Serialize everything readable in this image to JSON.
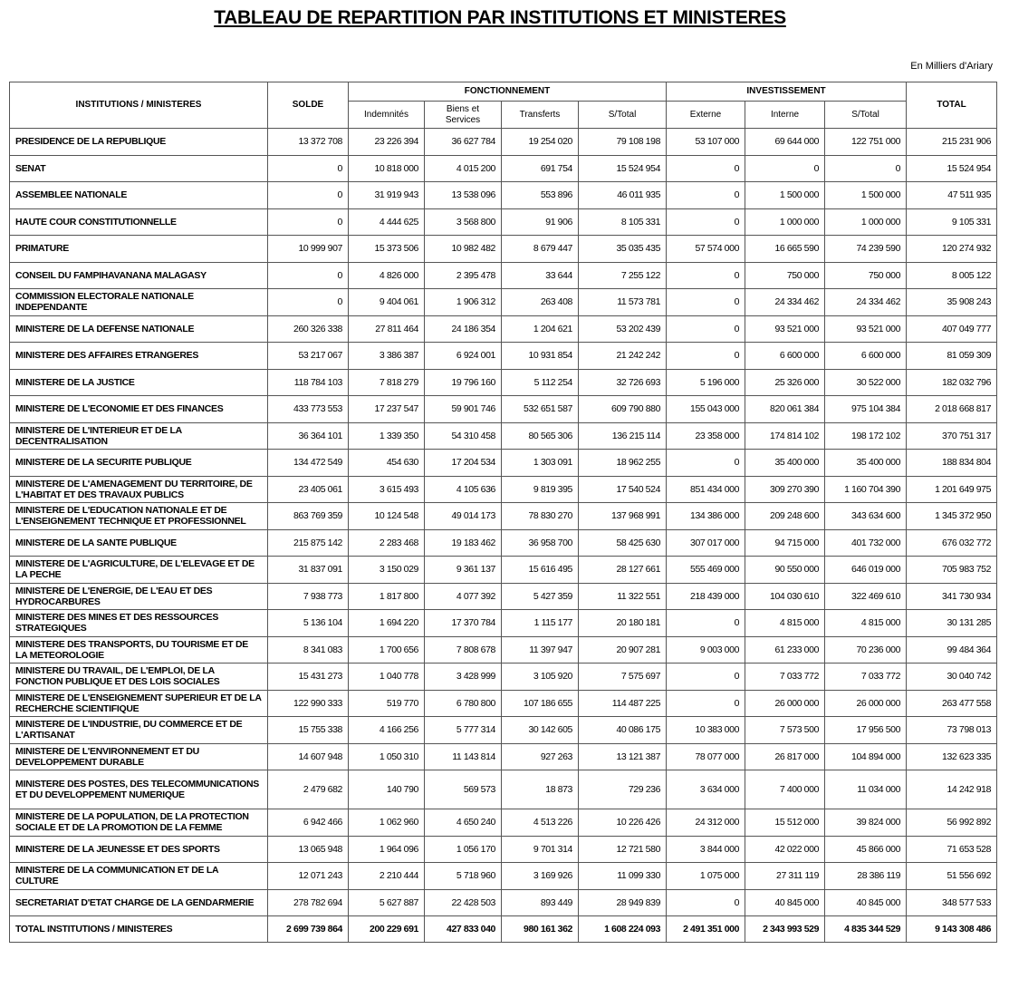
{
  "title": "TABLEAU DE REPARTITION PAR INSTITUTIONS ET MINISTERES",
  "unit": "En Milliers d'Ariary",
  "headers": {
    "institutions": "INSTITUTIONS / MINISTERES",
    "solde": "SOLDE",
    "fonctionnement": "FONCTIONNEMENT",
    "investissement": "INVESTISSEMENT",
    "total": "TOTAL",
    "indemnites": "Indemnités",
    "biens": "Biens et Services",
    "transferts": "Transferts",
    "stotal_f": "S/Total",
    "externe": "Externe",
    "interne": "Interne",
    "stotal_i": "S/Total"
  },
  "rows": [
    [
      "PRESIDENCE DE LA REPUBLIQUE",
      "13 372 708",
      "23 226 394",
      "36 627 784",
      "19 254 020",
      "79 108 198",
      "53 107 000",
      "69 644 000",
      "122 751 000",
      "215 231 906"
    ],
    [
      "SENAT",
      "0",
      "10 818 000",
      "4 015 200",
      "691 754",
      "15 524 954",
      "0",
      "0",
      "0",
      "15 524 954"
    ],
    [
      "ASSEMBLEE NATIONALE",
      "0",
      "31 919 943",
      "13 538 096",
      "553 896",
      "46 011 935",
      "0",
      "1 500 000",
      "1 500 000",
      "47 511 935"
    ],
    [
      "HAUTE COUR CONSTITUTIONNELLE",
      "0",
      "4 444 625",
      "3 568 800",
      "91 906",
      "8 105 331",
      "0",
      "1 000 000",
      "1 000 000",
      "9 105 331"
    ],
    [
      "PRIMATURE",
      "10 999 907",
      "15 373 506",
      "10 982 482",
      "8 679 447",
      "35 035 435",
      "57 574 000",
      "16 665 590",
      "74 239 590",
      "120 274 932"
    ],
    [
      "CONSEIL DU FAMPIHAVANANA MALAGASY",
      "0",
      "4 826 000",
      "2 395 478",
      "33 644",
      "7 255 122",
      "0",
      "750 000",
      "750 000",
      "8 005 122"
    ],
    [
      "COMMISSION ELECTORALE NATIONALE INDEPENDANTE",
      "0",
      "9 404 061",
      "1 906 312",
      "263 408",
      "11 573 781",
      "0",
      "24 334 462",
      "24 334 462",
      "35 908 243"
    ],
    [
      "MINISTERE DE LA DEFENSE NATIONALE",
      "260 326 338",
      "27 811 464",
      "24 186 354",
      "1 204 621",
      "53 202 439",
      "0",
      "93 521 000",
      "93 521 000",
      "407 049 777"
    ],
    [
      "MINISTERE DES AFFAIRES ETRANGERES",
      "53 217 067",
      "3 386 387",
      "6 924 001",
      "10 931 854",
      "21 242 242",
      "0",
      "6 600 000",
      "6 600 000",
      "81 059 309"
    ],
    [
      "MINISTERE DE LA JUSTICE",
      "118 784 103",
      "7 818 279",
      "19 796 160",
      "5 112 254",
      "32 726 693",
      "5 196 000",
      "25 326 000",
      "30 522 000",
      "182 032 796"
    ],
    [
      "MINISTERE DE L'ECONOMIE ET DES FINANCES",
      "433 773 553",
      "17 237 547",
      "59 901 746",
      "532 651 587",
      "609 790 880",
      "155 043 000",
      "820 061 384",
      "975 104 384",
      "2 018 668 817"
    ],
    [
      "MINISTERE DE L'INTERIEUR ET DE LA DECENTRALISATION",
      "36 364 101",
      "1 339 350",
      "54 310 458",
      "80 565 306",
      "136 215 114",
      "23 358 000",
      "174 814 102",
      "198 172 102",
      "370 751 317"
    ],
    [
      "MINISTERE DE LA SECURITE PUBLIQUE",
      "134 472 549",
      "454 630",
      "17 204 534",
      "1 303 091",
      "18 962 255",
      "0",
      "35 400 000",
      "35 400 000",
      "188 834 804"
    ],
    [
      "MINISTERE DE L'AMENAGEMENT DU TERRITOIRE, DE L'HABITAT ET DES TRAVAUX PUBLICS",
      "23 405 061",
      "3 615 493",
      "4 105 636",
      "9 819 395",
      "17 540 524",
      "851 434 000",
      "309 270 390",
      "1 160 704 390",
      "1 201 649 975"
    ],
    [
      "MINISTERE DE L'EDUCATION NATIONALE ET DE L'ENSEIGNEMENT TECHNIQUE ET PROFESSIONNEL",
      "863 769 359",
      "10 124 548",
      "49 014 173",
      "78 830 270",
      "137 968 991",
      "134 386 000",
      "209 248 600",
      "343 634 600",
      "1 345 372 950"
    ],
    [
      "MINISTERE DE LA SANTE PUBLIQUE",
      "215 875 142",
      "2 283 468",
      "19 183 462",
      "36 958 700",
      "58 425 630",
      "307 017 000",
      "94 715 000",
      "401 732 000",
      "676 032 772"
    ],
    [
      "MINISTERE DE L'AGRICULTURE, DE L'ELEVAGE ET DE LA PECHE",
      "31 837 091",
      "3 150 029",
      "9 361 137",
      "15 616 495",
      "28 127 661",
      "555 469 000",
      "90 550 000",
      "646 019 000",
      "705 983 752"
    ],
    [
      "MINISTERE DE L'ENERGIE, DE L'EAU ET DES HYDROCARBURES",
      "7 938 773",
      "1 817 800",
      "4 077 392",
      "5 427 359",
      "11 322 551",
      "218 439 000",
      "104 030 610",
      "322 469 610",
      "341 730 934"
    ],
    [
      "MINISTERE DES MINES ET DES RESSOURCES STRATEGIQUES",
      "5 136 104",
      "1 694 220",
      "17 370 784",
      "1 115 177",
      "20 180 181",
      "0",
      "4 815 000",
      "4 815 000",
      "30 131 285"
    ],
    [
      "MINISTERE DES TRANSPORTS, DU TOURISME ET DE LA METEOROLOGIE",
      "8 341 083",
      "1 700 656",
      "7 808 678",
      "11 397 947",
      "20 907 281",
      "9 003 000",
      "61 233 000",
      "70 236 000",
      "99 484 364"
    ],
    [
      "MINISTERE DU TRAVAIL, DE L'EMPLOI, DE LA FONCTION PUBLIQUE ET DES LOIS SOCIALES",
      "15 431 273",
      "1 040 778",
      "3 428 999",
      "3 105 920",
      "7 575 697",
      "0",
      "7 033 772",
      "7 033 772",
      "30 040 742"
    ],
    [
      "MINISTERE DE L'ENSEIGNEMENT SUPERIEUR ET DE LA RECHERCHE SCIENTIFIQUE",
      "122 990 333",
      "519 770",
      "6 780 800",
      "107 186 655",
      "114 487 225",
      "0",
      "26 000 000",
      "26 000 000",
      "263 477 558"
    ],
    [
      "MINISTERE DE L'INDUSTRIE, DU COMMERCE ET DE L'ARTISANAT",
      "15 755 338",
      "4 166 256",
      "5 777 314",
      "30 142 605",
      "40 086 175",
      "10 383 000",
      "7 573 500",
      "17 956 500",
      "73 798 013"
    ],
    [
      "MINISTERE DE L'ENVIRONNEMENT ET DU DEVELOPPEMENT DURABLE",
      "14 607 948",
      "1 050 310",
      "11 143 814",
      "927 263",
      "13 121 387",
      "78 077 000",
      "26 817 000",
      "104 894 000",
      "132 623 335"
    ],
    [
      "MINISTERE DES POSTES, DES TELECOMMUNICATIONS ET DU DEVELOPPEMENT NUMERIQUE",
      "2 479 682",
      "140 790",
      "569 573",
      "18 873",
      "729 236",
      "3 634 000",
      "7 400 000",
      "11 034 000",
      "14 242 918"
    ],
    [
      "MINISTERE DE LA POPULATION, DE LA PROTECTION SOCIALE ET DE LA PROMOTION DE LA FEMME",
      "6 942 466",
      "1 062 960",
      "4 650 240",
      "4 513 226",
      "10 226 426",
      "24 312 000",
      "15 512 000",
      "39 824 000",
      "56 992 892"
    ],
    [
      "MINISTERE DE LA JEUNESSE ET DES SPORTS",
      "13 065 948",
      "1 964 096",
      "1 056 170",
      "9 701 314",
      "12 721 580",
      "3 844 000",
      "42 022 000",
      "45 866 000",
      "71 653 528"
    ],
    [
      "MINISTERE DE LA COMMUNICATION ET DE LA CULTURE",
      "12 071 243",
      "2 210 444",
      "5 718 960",
      "3 169 926",
      "11 099 330",
      "1 075 000",
      "27 311 119",
      "28 386 119",
      "51 556 692"
    ],
    [
      "SECRETARIAT D'ETAT CHARGE DE LA GENDARMERIE",
      "278 782 694",
      "5 627 887",
      "22 428 503",
      "893 449",
      "28 949 839",
      "0",
      "40 845 000",
      "40 845 000",
      "348 577 533"
    ]
  ],
  "total": [
    "TOTAL INSTITUTIONS / MINISTERES",
    "2 699 739 864",
    "200 229 691",
    "427 833 040",
    "980 161 362",
    "1 608 224 093",
    "2 491 351 000",
    "2 343 993 529",
    "4 835 344 529",
    "9 143 308 486"
  ]
}
